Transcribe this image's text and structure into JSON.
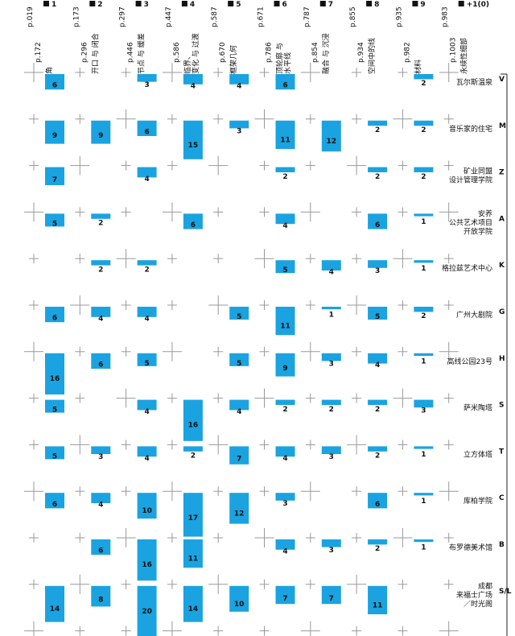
{
  "columns": [
    {
      "number": "1",
      "page_start": "p.019",
      "page_end": "p.172",
      "label_lines": [
        "角"
      ]
    },
    {
      "number": "2",
      "page_start": "p.173",
      "page_end": "p.296",
      "label_lines": [
        "开口 与 闭合"
      ]
    },
    {
      "number": "3",
      "page_start": "p.297",
      "page_end": "p.446",
      "label_lines": [
        "节点 与 缓差"
      ]
    },
    {
      "number": "4",
      "page_start": "p.447",
      "page_end": "p.586",
      "label_lines": [
        "临界、",
        "变化 与 过渡"
      ]
    },
    {
      "number": "5",
      "page_start": "p.587",
      "page_end": "p.670",
      "label_lines": [
        "框架几何"
      ]
    },
    {
      "number": "6",
      "page_start": "p.671",
      "page_end": "p.786",
      "label_lines": [
        "顶轮廓 与",
        "水平线"
      ]
    },
    {
      "number": "7",
      "page_start": "p.787",
      "page_end": "p.854",
      "label_lines": [
        "融合 与 沉浸"
      ]
    },
    {
      "number": "8",
      "page_start": "p.855",
      "page_end": "p.934",
      "label_lines": [
        "空间中的线"
      ]
    },
    {
      "number": "9",
      "page_start": "p.935",
      "page_end": "p.982",
      "label_lines": [
        "材料"
      ]
    },
    {
      "number": "+1(0)",
      "page_start": "p.983",
      "page_end": "p.1003",
      "label_lines": [
        "永续性细部"
      ]
    }
  ],
  "rows": [
    {
      "code": "V",
      "name_lines": [
        "瓦尔斯温泉"
      ],
      "counts": [
        6,
        null,
        3,
        4,
        4,
        6,
        null,
        null,
        2,
        null
      ]
    },
    {
      "code": "M",
      "name_lines": [
        "音乐家的住宅"
      ],
      "counts": [
        9,
        9,
        6,
        15,
        3,
        11,
        12,
        2,
        2,
        null
      ]
    },
    {
      "code": "Z",
      "name_lines": [
        "矿业同盟",
        "设计管理学院"
      ],
      "counts": [
        7,
        null,
        4,
        null,
        null,
        2,
        null,
        2,
        2,
        null
      ]
    },
    {
      "code": "A",
      "name_lines": [
        "安养",
        "公共艺术项目",
        "开放学院"
      ],
      "counts": [
        5,
        2,
        null,
        6,
        null,
        4,
        null,
        6,
        1,
        null
      ]
    },
    {
      "code": "K",
      "name_lines": [
        "格拉兹艺术中心"
      ],
      "counts": [
        null,
        2,
        2,
        null,
        null,
        5,
        4,
        3,
        1,
        null
      ]
    },
    {
      "code": "G",
      "name_lines": [
        "广州大剧院"
      ],
      "counts": [
        6,
        4,
        4,
        null,
        5,
        11,
        1,
        5,
        2,
        null
      ]
    },
    {
      "code": "H",
      "name_lines": [
        "高线公园23号"
      ],
      "counts": [
        16,
        6,
        5,
        null,
        5,
        9,
        3,
        4,
        1,
        null
      ]
    },
    {
      "code": "S",
      "name_lines": [
        "萨米陶塔"
      ],
      "counts": [
        5,
        null,
        4,
        16,
        4,
        2,
        2,
        2,
        3,
        null
      ]
    },
    {
      "code": "T",
      "name_lines": [
        "立方体塔"
      ],
      "counts": [
        5,
        3,
        4,
        2,
        7,
        4,
        3,
        2,
        1,
        null
      ]
    },
    {
      "code": "C",
      "name_lines": [
        "库柏学院"
      ],
      "counts": [
        6,
        4,
        10,
        17,
        12,
        3,
        null,
        6,
        1,
        null
      ]
    },
    {
      "code": "B",
      "name_lines": [
        "布罗德美术馆"
      ],
      "counts": [
        null,
        6,
        16,
        11,
        null,
        4,
        3,
        2,
        1,
        null
      ]
    },
    {
      "code": "S/L",
      "name_lines": [
        "成都",
        "来福士广场",
        "／时光阁"
      ],
      "counts": [
        14,
        8,
        20,
        14,
        10,
        7,
        7,
        11,
        null,
        null
      ]
    }
  ]
}
